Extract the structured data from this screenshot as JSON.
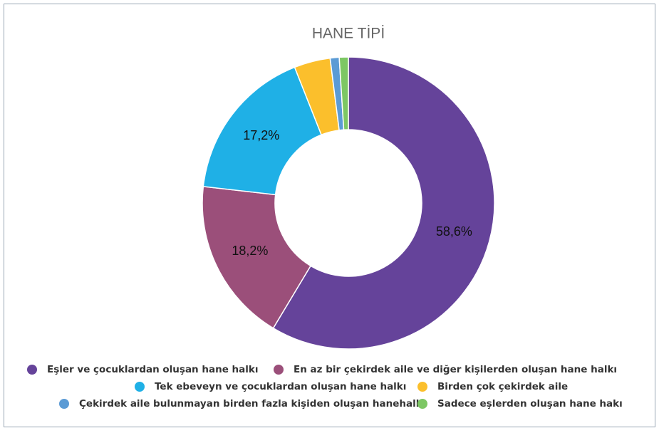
{
  "chart_data": {
    "type": "donut",
    "title": "HANE TİPİ",
    "categories": [
      "Eşler ve çocuklardan oluşan hane halkı",
      "En az bir çekirdek aile ve diğer kişilerden oluşan hane halkı",
      "Tek ebeveyn ve çocuklardan oluşan hane halkı",
      "Birden çok çekirdek aile",
      "Çekirdek aile bulunmayan birden fazla kişiden oluşan hanehalkı",
      "Sadece eşlerden oluşan hane hakı"
    ],
    "values": [
      58.6,
      18.2,
      17.2,
      4.0,
      1.0,
      1.0
    ],
    "value_labels": [
      "58,6%",
      "18,2%",
      "17,2%",
      null,
      null,
      null
    ],
    "colors": [
      "#65439a",
      "#9b4f7a",
      "#1fb0e6",
      "#fbbf2c",
      "#5b9bd5",
      "#7dc764"
    ],
    "legend": "bottom"
  }
}
